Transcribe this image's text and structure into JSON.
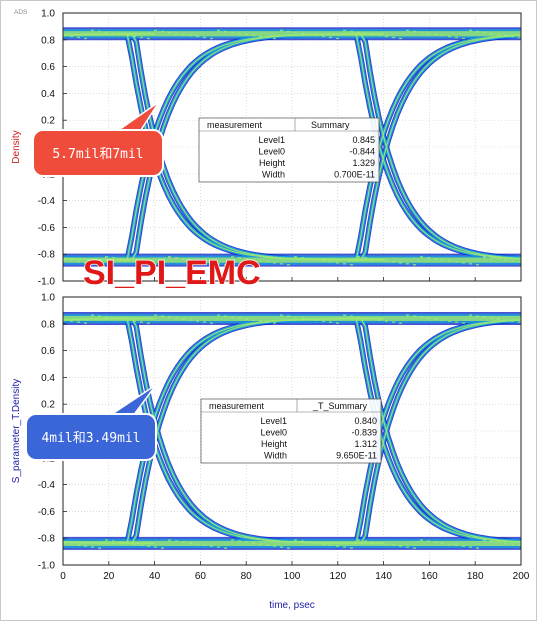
{
  "corner_label": "ADS",
  "watermark": "SI_PI_EMC",
  "chart_data": [
    {
      "type": "line",
      "ylabel": "Density",
      "xlabel": "",
      "xlim": [
        0,
        200
      ],
      "ylim": [
        -1.0,
        1.0
      ],
      "xticks": [
        "0",
        "20",
        "40",
        "60",
        "80",
        "100",
        "120",
        "140",
        "160",
        "180",
        "200"
      ],
      "yticks": [
        "-1.0",
        "-0.8",
        "-0.6",
        "-0.4",
        "-0.2",
        "0.0",
        "0.2",
        "0.4",
        "0.6",
        "0.8",
        "1.0"
      ],
      "grid": true,
      "colors": {
        "ylabel": "#cc2222",
        "eye_outer": "#1020c8",
        "eye_mid": "#1aa0e0",
        "eye_inner": "#9ee870"
      },
      "eye_crossings": [
        50,
        150
      ],
      "eye_levels": {
        "high": 0.845,
        "low": -0.844
      },
      "table": {
        "headers": [
          "measurement",
          "Summary"
        ],
        "rows": [
          [
            "Level1",
            "0.845"
          ],
          [
            "Level0",
            "-0.844"
          ],
          [
            "Height",
            "1.329"
          ],
          [
            "Width",
            "0.700E-11"
          ]
        ]
      },
      "callout": "5.7mil和7mil"
    },
    {
      "type": "line",
      "ylabel": "S_parameter_T.Density",
      "xlabel": "time, psec",
      "xlim": [
        0,
        200
      ],
      "ylim": [
        -1.0,
        1.0
      ],
      "xticks": [
        "0",
        "20",
        "40",
        "60",
        "80",
        "100",
        "120",
        "140",
        "160",
        "180",
        "200"
      ],
      "yticks": [
        "-1.0",
        "-0.8",
        "-0.6",
        "-0.4",
        "-0.2",
        "0.0",
        "0.2",
        "0.4",
        "0.6",
        "0.8",
        "1.0"
      ],
      "grid": true,
      "colors": {
        "ylabel": "#2222aa",
        "eye_outer": "#1020c8",
        "eye_mid": "#1aa0e0",
        "eye_inner": "#9ee870"
      },
      "eye_crossings": [
        50,
        150
      ],
      "eye_levels": {
        "high": 0.84,
        "low": -0.839
      },
      "table": {
        "headers": [
          "measurement",
          "_T_Summary"
        ],
        "rows": [
          [
            "Level1",
            "0.840"
          ],
          [
            "Level0",
            "-0.839"
          ],
          [
            "Height",
            "1.312"
          ],
          [
            "Width",
            "9.650E-11"
          ]
        ]
      },
      "callout": "4mil和3.49mil"
    }
  ]
}
